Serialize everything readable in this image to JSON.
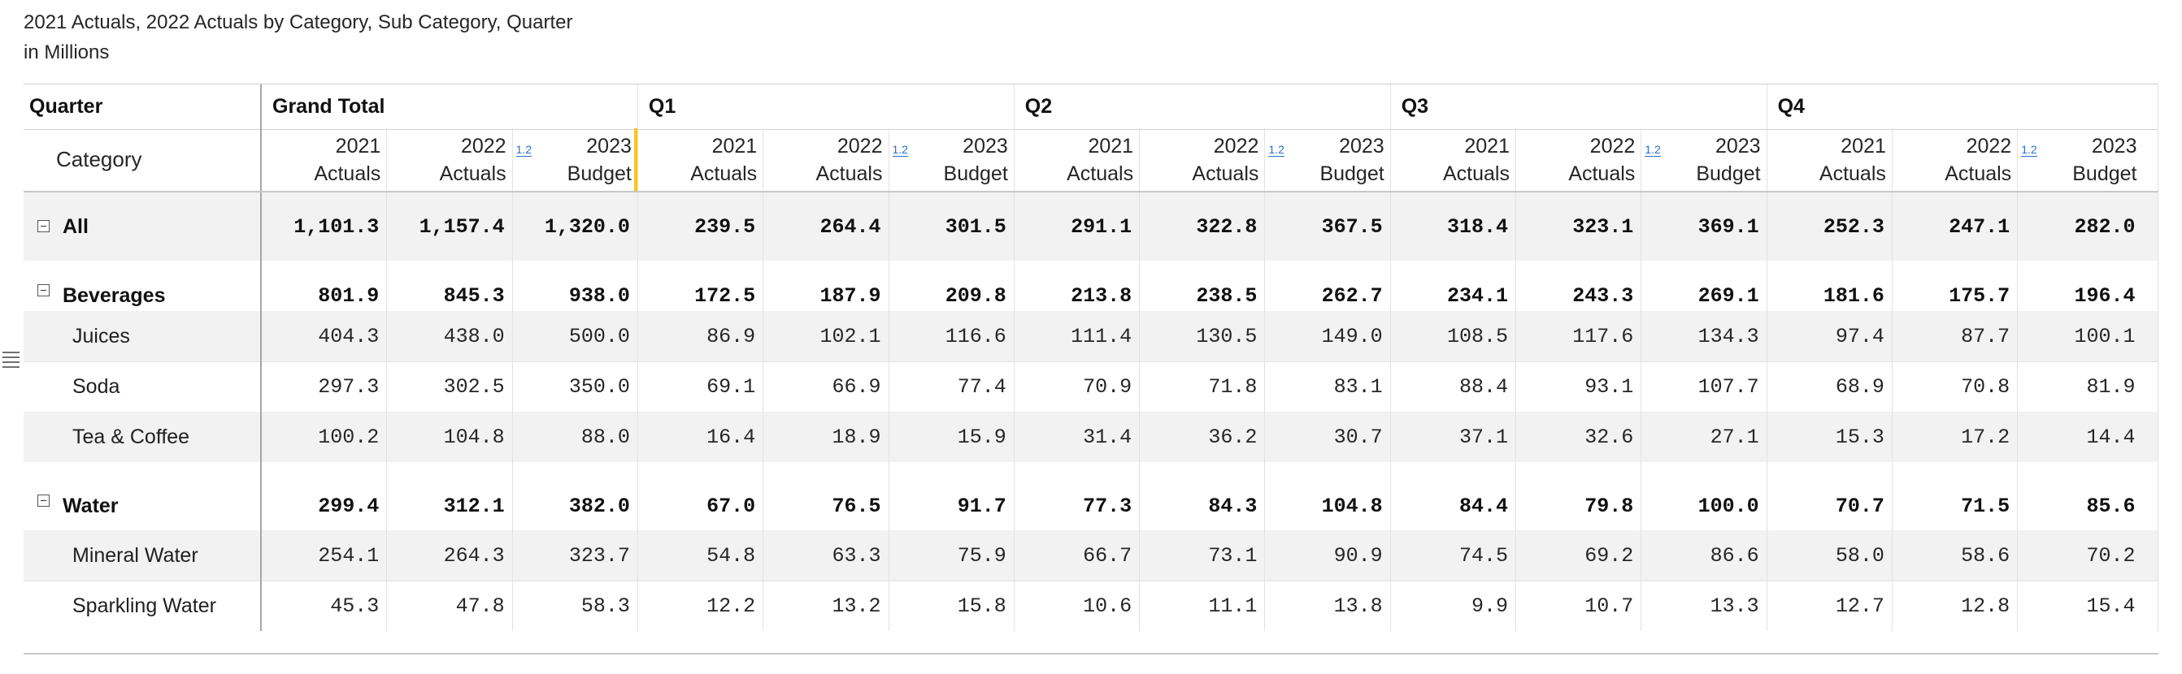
{
  "title": {
    "line1": "2021 Actuals, 2022 Actuals by Category, Sub Category, Quarter",
    "line2": "in Millions"
  },
  "header": {
    "quarter_label": "Quarter",
    "category_label": "Category",
    "groups": [
      "Grand Total",
      "Q1",
      "Q2",
      "Q3",
      "Q4"
    ],
    "measures": [
      {
        "line1": "2021",
        "line2": "Actuals"
      },
      {
        "line1": "2022",
        "line2": "Actuals"
      },
      {
        "line1": "2023",
        "line2": "Budget"
      }
    ],
    "variance_icon": "1.2"
  },
  "rows": [
    {
      "label": "All",
      "bold": true,
      "collapse": true,
      "indent": 0,
      "values": [
        "1,101.3",
        "1,157.4",
        "1,320.0",
        "239.5",
        "264.4",
        "301.5",
        "291.1",
        "322.8",
        "367.5",
        "318.4",
        "323.1",
        "369.1",
        "252.3",
        "247.1",
        "282.0"
      ]
    },
    {
      "label": "Beverages",
      "bold": true,
      "collapse": true,
      "indent": 0,
      "values": [
        "801.9",
        "845.3",
        "938.0",
        "172.5",
        "187.9",
        "209.8",
        "213.8",
        "238.5",
        "262.7",
        "234.1",
        "243.3",
        "269.1",
        "181.6",
        "175.7",
        "196.4"
      ]
    },
    {
      "label": "Juices",
      "bold": false,
      "collapse": false,
      "indent": 1,
      "values": [
        "404.3",
        "438.0",
        "500.0",
        "86.9",
        "102.1",
        "116.6",
        "111.4",
        "130.5",
        "149.0",
        "108.5",
        "117.6",
        "134.3",
        "97.4",
        "87.7",
        "100.1"
      ]
    },
    {
      "label": "Soda",
      "bold": false,
      "collapse": false,
      "indent": 1,
      "values": [
        "297.3",
        "302.5",
        "350.0",
        "69.1",
        "66.9",
        "77.4",
        "70.9",
        "71.8",
        "83.1",
        "88.4",
        "93.1",
        "107.7",
        "68.9",
        "70.8",
        "81.9"
      ]
    },
    {
      "label": "Tea & Coffee",
      "bold": false,
      "collapse": false,
      "indent": 1,
      "values": [
        "100.2",
        "104.8",
        "88.0",
        "16.4",
        "18.9",
        "15.9",
        "31.4",
        "36.2",
        "30.7",
        "37.1",
        "32.6",
        "27.1",
        "15.3",
        "17.2",
        "14.4"
      ]
    },
    {
      "label": "Water",
      "bold": true,
      "collapse": true,
      "indent": 0,
      "values": [
        "299.4",
        "312.1",
        "382.0",
        "67.0",
        "76.5",
        "91.7",
        "77.3",
        "84.3",
        "104.8",
        "84.4",
        "79.8",
        "100.0",
        "70.7",
        "71.5",
        "85.6"
      ]
    },
    {
      "label": "Mineral Water",
      "bold": false,
      "collapse": false,
      "indent": 1,
      "values": [
        "254.1",
        "264.3",
        "323.7",
        "54.8",
        "63.3",
        "75.9",
        "66.7",
        "73.1",
        "90.9",
        "74.5",
        "69.2",
        "86.6",
        "58.0",
        "58.6",
        "70.2"
      ]
    },
    {
      "label": "Sparkling Water",
      "bold": false,
      "collapse": false,
      "indent": 1,
      "values": [
        "45.3",
        "47.8",
        "58.3",
        "12.2",
        "13.2",
        "15.8",
        "10.6",
        "11.1",
        "13.8",
        "9.9",
        "10.7",
        "13.3",
        "12.7",
        "12.8",
        "15.4"
      ]
    }
  ],
  "colors": {
    "shade": "#f2f2f2",
    "accent": "#f4c430",
    "link": "#2a6fc9"
  }
}
